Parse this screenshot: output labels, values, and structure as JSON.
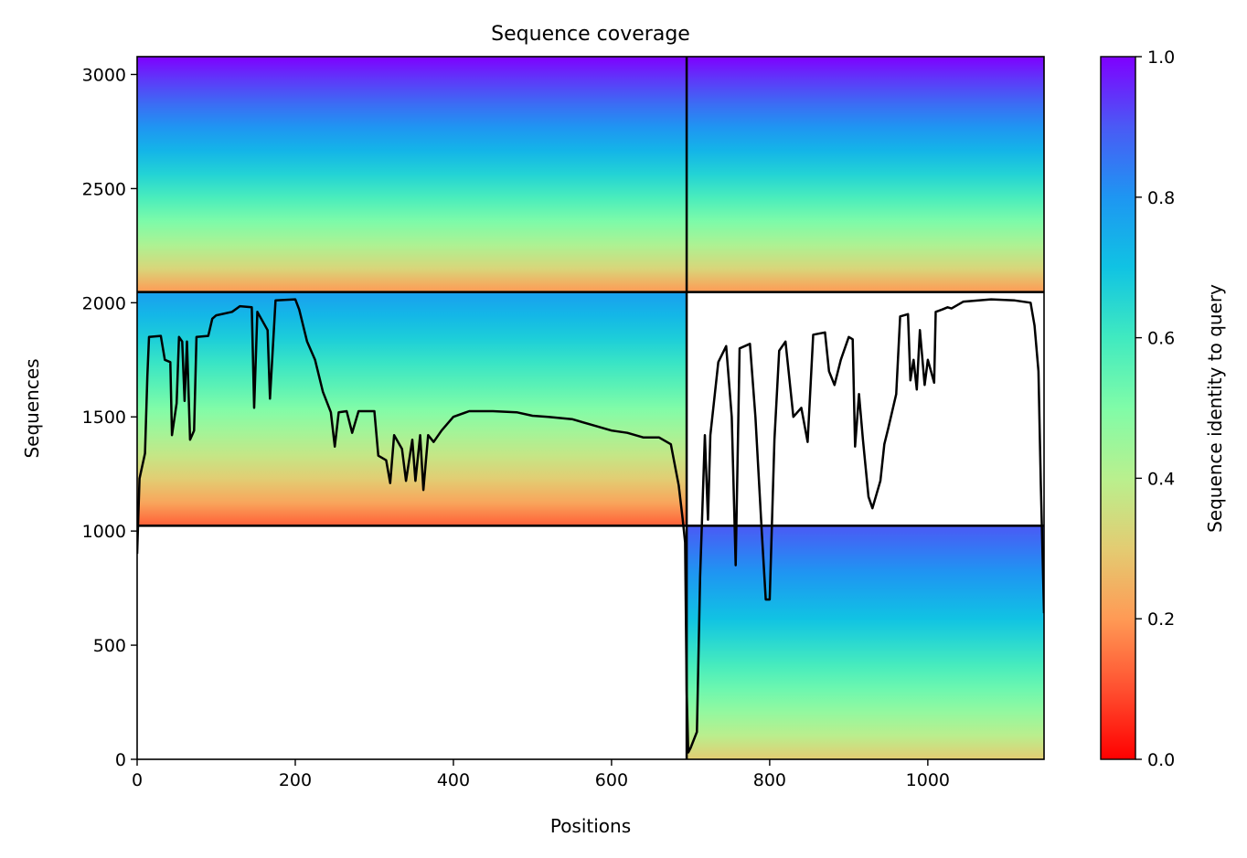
{
  "chart_data": {
    "type": "heatmap",
    "title": "Sequence coverage",
    "xlabel": "Positions",
    "ylabel": "Sequences",
    "xlim": [
      0,
      1147
    ],
    "ylim": [
      0,
      3078
    ],
    "xticks": [
      0,
      200,
      400,
      600,
      800,
      1000
    ],
    "yticks": [
      0,
      500,
      1000,
      1500,
      2000,
      2500,
      3000
    ],
    "colorbar": {
      "label": "Sequence identity to query",
      "min": 0.0,
      "max": 1.0,
      "ticks": [
        0.0,
        0.2,
        0.4,
        0.6,
        0.8,
        1.0
      ],
      "colormap": "rainbow"
    },
    "boundary_x": 695,
    "boundary_y": [
      1023,
      2047
    ],
    "blocks": [
      {
        "x": [
          0,
          695
        ],
        "y": [
          2047,
          3078
        ],
        "identity_top": 1.0,
        "identity_bottom": 0.2
      },
      {
        "x": [
          695,
          1147
        ],
        "y": [
          2047,
          3078
        ],
        "identity_top": 1.0,
        "identity_bottom": 0.2
      },
      {
        "x": [
          0,
          695
        ],
        "y": [
          1023,
          2047
        ],
        "identity_top": 0.78,
        "identity_bottom": 0.12
      },
      {
        "x": [
          695,
          1147
        ],
        "y": [
          0,
          1023
        ],
        "identity_top": 0.9,
        "identity_bottom": 0.3
      }
    ],
    "coverage_line": [
      [
        0,
        900
      ],
      [
        3,
        1230
      ],
      [
        10,
        1340
      ],
      [
        13,
        1680
      ],
      [
        15,
        1850
      ],
      [
        30,
        1855
      ],
      [
        35,
        1750
      ],
      [
        42,
        1740
      ],
      [
        44,
        1420
      ],
      [
        50,
        1560
      ],
      [
        53,
        1850
      ],
      [
        57,
        1830
      ],
      [
        60,
        1570
      ],
      [
        63,
        1830
      ],
      [
        67,
        1400
      ],
      [
        72,
        1440
      ],
      [
        75,
        1850
      ],
      [
        90,
        1855
      ],
      [
        95,
        1930
      ],
      [
        100,
        1945
      ],
      [
        120,
        1960
      ],
      [
        130,
        1985
      ],
      [
        145,
        1980
      ],
      [
        148,
        1540
      ],
      [
        152,
        1960
      ],
      [
        165,
        1880
      ],
      [
        168,
        1580
      ],
      [
        175,
        2010
      ],
      [
        200,
        2015
      ],
      [
        205,
        1970
      ],
      [
        215,
        1830
      ],
      [
        225,
        1750
      ],
      [
        235,
        1610
      ],
      [
        245,
        1520
      ],
      [
        250,
        1370
      ],
      [
        255,
        1520
      ],
      [
        265,
        1525
      ],
      [
        272,
        1430
      ],
      [
        280,
        1525
      ],
      [
        300,
        1525
      ],
      [
        305,
        1330
      ],
      [
        315,
        1310
      ],
      [
        320,
        1210
      ],
      [
        325,
        1420
      ],
      [
        335,
        1360
      ],
      [
        340,
        1220
      ],
      [
        348,
        1400
      ],
      [
        352,
        1220
      ],
      [
        358,
        1420
      ],
      [
        362,
        1180
      ],
      [
        368,
        1420
      ],
      [
        375,
        1390
      ],
      [
        385,
        1440
      ],
      [
        400,
        1500
      ],
      [
        420,
        1525
      ],
      [
        450,
        1525
      ],
      [
        480,
        1520
      ],
      [
        500,
        1505
      ],
      [
        520,
        1500
      ],
      [
        550,
        1490
      ],
      [
        580,
        1460
      ],
      [
        600,
        1440
      ],
      [
        620,
        1430
      ],
      [
        640,
        1410
      ],
      [
        660,
        1410
      ],
      [
        675,
        1380
      ],
      [
        685,
        1200
      ],
      [
        690,
        1050
      ],
      [
        693,
        950
      ],
      [
        695,
        300
      ],
      [
        697,
        30
      ],
      [
        700,
        50
      ],
      [
        708,
        120
      ],
      [
        712,
        800
      ],
      [
        718,
        1420
      ],
      [
        722,
        1050
      ],
      [
        725,
        1420
      ],
      [
        735,
        1740
      ],
      [
        745,
        1810
      ],
      [
        752,
        1500
      ],
      [
        757,
        850
      ],
      [
        762,
        1800
      ],
      [
        775,
        1820
      ],
      [
        782,
        1500
      ],
      [
        790,
        1000
      ],
      [
        795,
        700
      ],
      [
        800,
        700
      ],
      [
        806,
        1400
      ],
      [
        812,
        1790
      ],
      [
        820,
        1830
      ],
      [
        830,
        1500
      ],
      [
        840,
        1540
      ],
      [
        848,
        1390
      ],
      [
        855,
        1860
      ],
      [
        870,
        1870
      ],
      [
        875,
        1700
      ],
      [
        882,
        1640
      ],
      [
        890,
        1750
      ],
      [
        900,
        1850
      ],
      [
        905,
        1840
      ],
      [
        908,
        1370
      ],
      [
        913,
        1600
      ],
      [
        918,
        1400
      ],
      [
        925,
        1150
      ],
      [
        930,
        1100
      ],
      [
        940,
        1220
      ],
      [
        945,
        1380
      ],
      [
        950,
        1450
      ],
      [
        960,
        1600
      ],
      [
        965,
        1940
      ],
      [
        975,
        1950
      ],
      [
        978,
        1660
      ],
      [
        982,
        1750
      ],
      [
        986,
        1620
      ],
      [
        990,
        1880
      ],
      [
        996,
        1640
      ],
      [
        1000,
        1750
      ],
      [
        1008,
        1650
      ],
      [
        1010,
        1960
      ],
      [
        1018,
        1970
      ],
      [
        1025,
        1980
      ],
      [
        1030,
        1975
      ],
      [
        1045,
        2005
      ],
      [
        1080,
        2015
      ],
      [
        1110,
        2010
      ],
      [
        1130,
        2000
      ],
      [
        1135,
        1900
      ],
      [
        1140,
        1700
      ],
      [
        1143,
        1200
      ],
      [
        1147,
        640
      ]
    ]
  }
}
